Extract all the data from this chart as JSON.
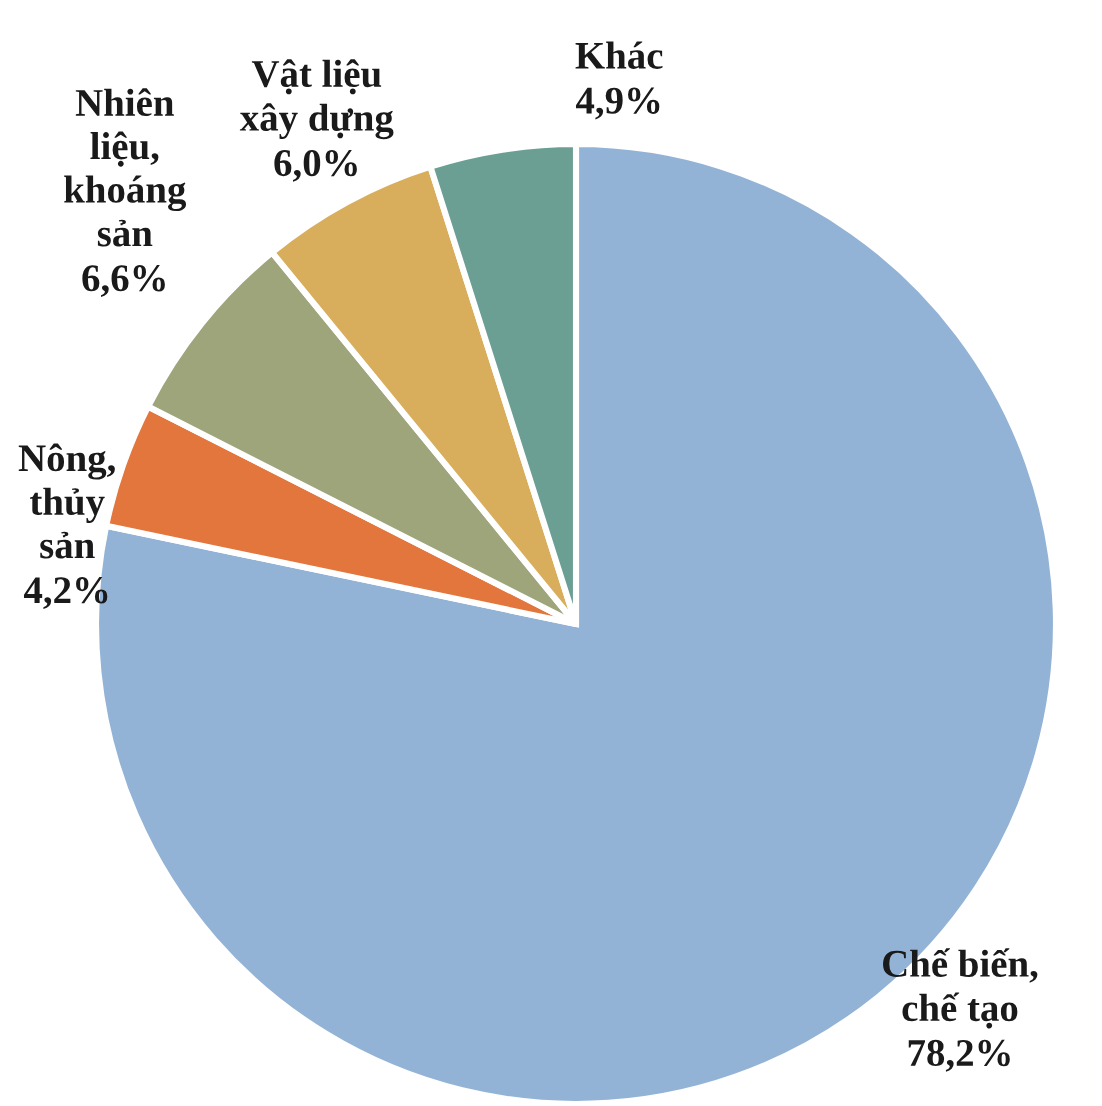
{
  "chart_data": {
    "type": "pie",
    "categories": [
      "Chế biến,\nchế tạo",
      "Nông,\nthủy\nsản",
      "Nhiên\nliệu,\nkhoáng\nsản",
      "Vật liệu\nxây dựng",
      "Khác"
    ],
    "values": [
      78.2,
      4.2,
      6.6,
      6.0,
      4.9
    ],
    "value_labels": [
      "78,2%",
      "4,2%",
      "6,6%",
      "6,0%",
      "4,9%"
    ],
    "colors": [
      "#93b3d6",
      "#e2763d",
      "#9ea57b",
      "#d8ae5c",
      "#6c9f94"
    ]
  }
}
